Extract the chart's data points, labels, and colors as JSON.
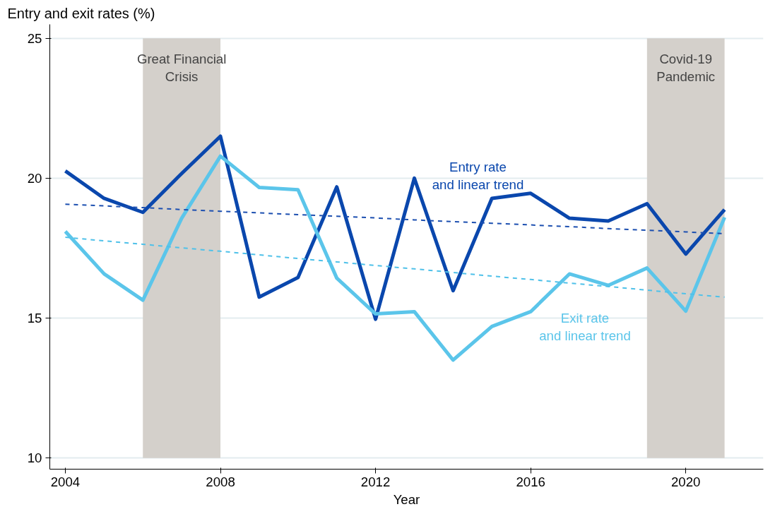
{
  "chart_data": {
    "type": "line",
    "ylabel": "Entry and exit rates (%)",
    "xlabel": "Year",
    "x": [
      2004,
      2005,
      2006,
      2007,
      2008,
      2009,
      2010,
      2011,
      2012,
      2013,
      2014,
      2015,
      2016,
      2017,
      2018,
      2019,
      2020,
      2021
    ],
    "series": [
      {
        "color": "#0a47ad",
        "values": [
          20.26,
          19.28,
          18.78,
          20.17,
          21.5,
          15.75,
          16.45,
          19.69,
          14.96,
          20.0,
          15.98,
          19.28,
          19.46,
          18.57,
          18.47,
          19.09,
          17.29,
          18.88
        ]
      },
      {
        "color": "#5bc5ea",
        "values": [
          18.1,
          16.58,
          15.64,
          18.57,
          20.79,
          19.67,
          19.59,
          16.43,
          15.15,
          15.23,
          13.5,
          14.7,
          15.23,
          16.58,
          16.17,
          16.79,
          15.25,
          18.6
        ]
      },
      {
        "type": "line",
        "color": "#1c4fb0",
        "line_style": "dashed",
        "values": [
          19.07,
          19.01,
          18.95,
          18.88,
          18.82,
          18.76,
          18.7,
          18.64,
          18.58,
          18.51,
          18.45,
          18.39,
          18.33,
          18.27,
          18.2,
          18.14,
          18.08,
          18.02
        ]
      },
      {
        "type": "line",
        "color": "#4fc1e9",
        "line_style": "dashed",
        "values": [
          17.89,
          17.76,
          17.64,
          17.51,
          17.39,
          17.26,
          17.13,
          17.01,
          16.88,
          16.76,
          16.63,
          16.5,
          16.38,
          16.25,
          16.13,
          16.0,
          15.87,
          15.75
        ]
      }
    ],
    "annotations": [
      "Entry rate\nand linear trend",
      "Exit rate\nand linear trend"
    ],
    "bands": [
      {
        "axis": "x",
        "from": 2006,
        "to": 2008,
        "label": "Great Financial\nCrisis",
        "color": "#d4d0cb"
      },
      {
        "axis": "x",
        "from": 2019,
        "to": 2021,
        "label": "Covid-19\nPandemic",
        "color": "#d4d0cb"
      }
    ],
    "xlim": [
      2003.6,
      2022.0
    ],
    "ylim": [
      9.6,
      25.5
    ],
    "xticks": [
      2004,
      2008,
      2012,
      2016,
      2020
    ],
    "yticks": [
      10,
      15,
      20,
      25
    ],
    "grid": "y",
    "line_style": "solid"
  }
}
